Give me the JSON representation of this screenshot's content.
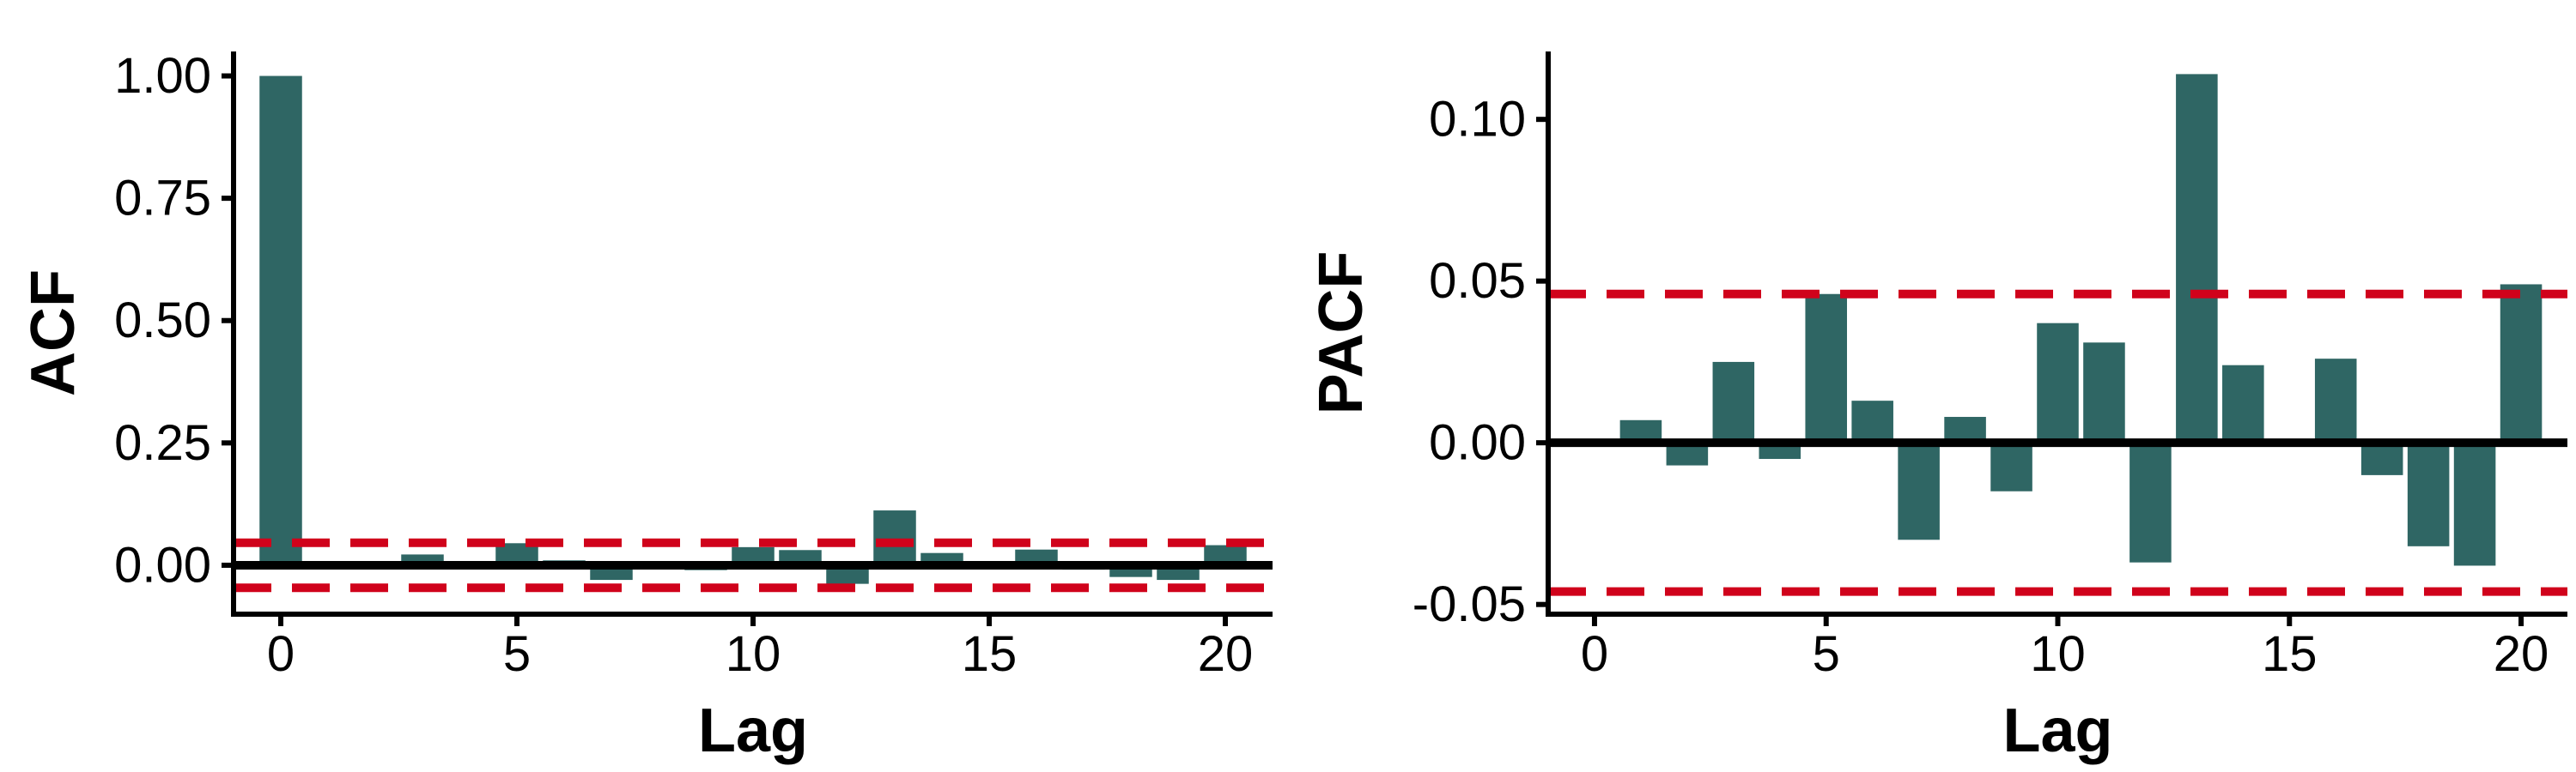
{
  "chart_data": [
    {
      "type": "bar",
      "ylabel": "ACF",
      "xlabel": "Lag",
      "xlim": [
        -1,
        21
      ],
      "ylim": [
        -0.1,
        1.05
      ],
      "x_ticks": [
        "0",
        "5",
        "10",
        "15",
        "20"
      ],
      "y_ticks": [
        "0.00",
        "0.25",
        "0.50",
        "0.75",
        "1.00"
      ],
      "lags": [
        0,
        1,
        2,
        3,
        4,
        5,
        6,
        7,
        8,
        9,
        10,
        11,
        12,
        13,
        14,
        15,
        16,
        17,
        18,
        19,
        20
      ],
      "values": [
        1.0,
        0.0,
        0.0,
        0.022,
        0.0,
        0.045,
        0.01,
        -0.03,
        0.0,
        -0.01,
        0.037,
        0.031,
        -0.038,
        0.112,
        0.025,
        0.0,
        0.032,
        -0.009,
        -0.024,
        -0.03,
        0.041
      ],
      "confidence_bound": 0.046,
      "bar_color": "#2f6664",
      "bound_color": "#d0021b"
    },
    {
      "type": "bar",
      "ylabel": "PACF",
      "xlabel": "Lag",
      "xlim": [
        -1,
        21
      ],
      "ylim": [
        -0.053,
        0.121
      ],
      "x_ticks": [
        "0",
        "5",
        "10",
        "15",
        "20"
      ],
      "y_ticks": [
        "-0.05",
        "0.00",
        "0.05",
        "0.10"
      ],
      "lags": [
        1,
        2,
        3,
        4,
        5,
        6,
        7,
        8,
        9,
        10,
        11,
        12,
        13,
        14,
        15,
        16,
        17,
        18,
        19,
        20
      ],
      "values": [
        0.007,
        -0.007,
        0.025,
        -0.005,
        0.046,
        0.013,
        -0.03,
        0.008,
        -0.015,
        0.037,
        0.031,
        -0.037,
        0.114,
        0.024,
        0.0,
        0.026,
        -0.01,
        -0.032,
        -0.038,
        0.049
      ],
      "confidence_bound": 0.046,
      "bar_color": "#2f6664",
      "bound_color": "#d0021b"
    }
  ]
}
